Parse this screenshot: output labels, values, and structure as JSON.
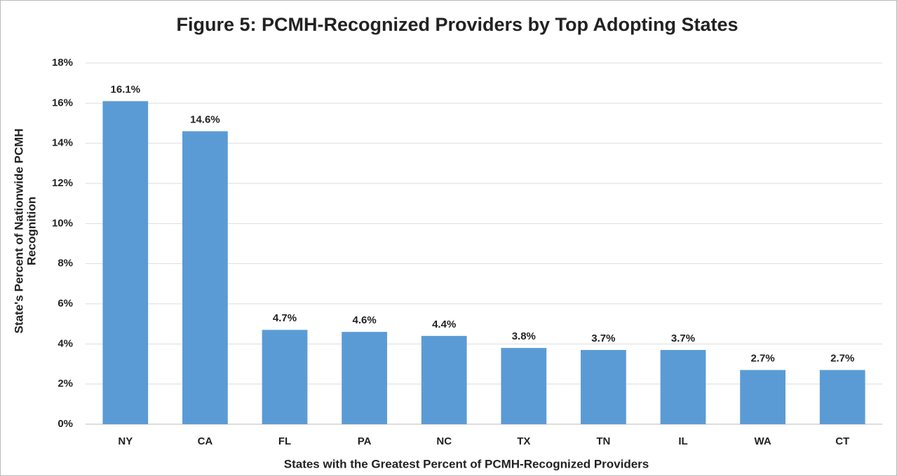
{
  "chart_data": {
    "type": "bar",
    "title": "Figure 5: PCMH-Recognized Providers by Top Adopting States",
    "xlabel": "States with the Greatest Percent of PCMH-Recognized Providers",
    "ylabel": [
      "State's Percent of Nationwide PCMH",
      "Recognition"
    ],
    "categories": [
      "NY",
      "CA",
      "FL",
      "PA",
      "NC",
      "TX",
      "TN",
      "IL",
      "WA",
      "CT"
    ],
    "values": [
      16.1,
      14.6,
      4.7,
      4.6,
      4.4,
      3.8,
      3.7,
      3.7,
      2.7,
      2.7
    ],
    "value_labels": [
      "16.1%",
      "14.6%",
      "4.7%",
      "4.6%",
      "4.4%",
      "3.8%",
      "3.7%",
      "3.7%",
      "2.7%",
      "2.7%"
    ],
    "color": "#5b9bd5",
    "ylim": [
      0,
      18
    ],
    "yticks": [
      {
        "value": 0,
        "label": "0%"
      },
      {
        "value": 2,
        "label": "2%"
      },
      {
        "value": 4,
        "label": "4%"
      },
      {
        "value": 6,
        "label": "6%"
      },
      {
        "value": 8,
        "label": "8%"
      },
      {
        "value": 10,
        "label": "10%"
      },
      {
        "value": 12,
        "label": "12%"
      },
      {
        "value": 14,
        "label": "14%"
      },
      {
        "value": 16,
        "label": "16%"
      },
      {
        "value": 18,
        "label": "18%"
      }
    ],
    "grid": true
  }
}
